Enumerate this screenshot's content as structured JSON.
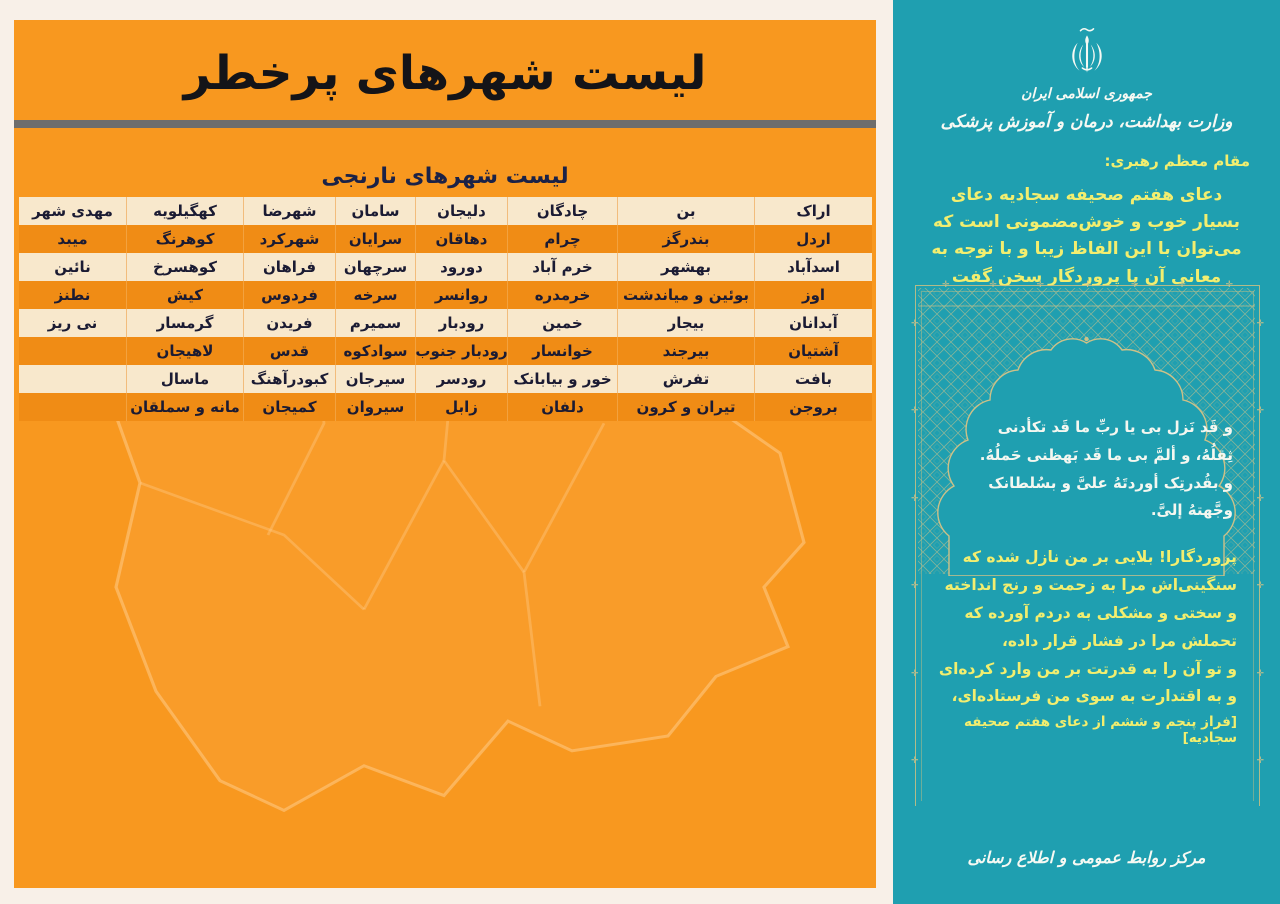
{
  "page": {
    "background": "#f8f0e8"
  },
  "left_panel": {
    "background_color": "#f8981f",
    "title": "لیست شهرهای پرخطر",
    "subtitle": "لیست شهرهای نارنجی",
    "map_icon": "iran-map-outline",
    "table": {
      "row_colors": {
        "cream": "#f8e8cc",
        "orange": "#f08c15"
      },
      "rows": [
        [
          "اراک",
          "بن",
          "چادگان",
          "دلیجان",
          "سامان",
          "شهرضا",
          "کهگیلویه",
          "مهدی شهر"
        ],
        [
          "اردل",
          "بندرگز",
          "چرام",
          "دهاقان",
          "سرایان",
          "شهرکرد",
          "کوهرنگ",
          "میبد"
        ],
        [
          "اسدآباد",
          "بهشهر",
          "خرم آباد",
          "دورود",
          "سرچهان",
          "فراهان",
          "کوهسرخ",
          "نائین"
        ],
        [
          "اوز",
          "بوئین و میاندشت",
          "خرمدره",
          "روانسر",
          "سرخه",
          "فردوس",
          "کیش",
          "نطنز"
        ],
        [
          "آبدانان",
          "بیجار",
          "خمین",
          "رودبار",
          "سمیرم",
          "فریدن",
          "گرمسار",
          "نی ریز"
        ],
        [
          "آشتیان",
          "بیرجند",
          "خوانسار",
          "رودبار جنوب",
          "سوادکوه",
          "قدس",
          "لاهیجان",
          ""
        ],
        [
          "بافت",
          "تفرش",
          "خور و بیابانک",
          "رودسر",
          "سیرجان",
          "کبودرآهنگ",
          "ماسال",
          ""
        ],
        [
          "بروجن",
          "تیران و کرون",
          "دلفان",
          "زابل",
          "سیروان",
          "کمیجان",
          "مانه و سملقان",
          ""
        ]
      ]
    }
  },
  "right_panel": {
    "background_color": "#1f9fb0",
    "accent_yellow": "#f2ee6f",
    "emblem_icon": "iran-national-emblem",
    "gov_line1": "جمهوری اسلامی ایران",
    "gov_line2": "وزارت بهداشت، درمان و آموزش پزشکی",
    "leader_label": "مقام معظم رهبری:",
    "leader_quote": "دعای هفتم صحیفه سجادیه دعای\nبسیار خوب و خوش‌مضمونی است که\nمی‌توان با این الفاظ زیبا و با توجه به\nمعانی آن با پروردگار سخن گفت",
    "frame": {
      "gold_color": "#cdc188",
      "ornament_glyph": "✛",
      "arabic_prayer": "و قَد نَزل بی یا ربِّ ما قَد تکأدنی\nثِقلُهُ، و ألمَّ بی ما قَد بَهظنی حَملُهُ.\nو بقُدرتِک أوردتَهُ علیَّ و بسُلطانک\nوجَّهتهُ إلیَّ.",
      "persian_translation": "پروردگارا! بلایی بر من نازل شده که\nسنگینی‌اش مرا به زحمت و رنج انداخته\nو سختی و مشکلی به دردم آورده که\nتحملش مرا در فشار قرار داده،\nو تو آن را به قدرتت بر من وارد کرده‌ای\nو به اقتدارت به سوی من فرستاده‌ای،",
      "citation": "[فراز پنجم و ششم از دعای هفتم صحیفه سجادیه]"
    },
    "footer": "مرکز روابط عمومی و اطلاع رسانی"
  }
}
